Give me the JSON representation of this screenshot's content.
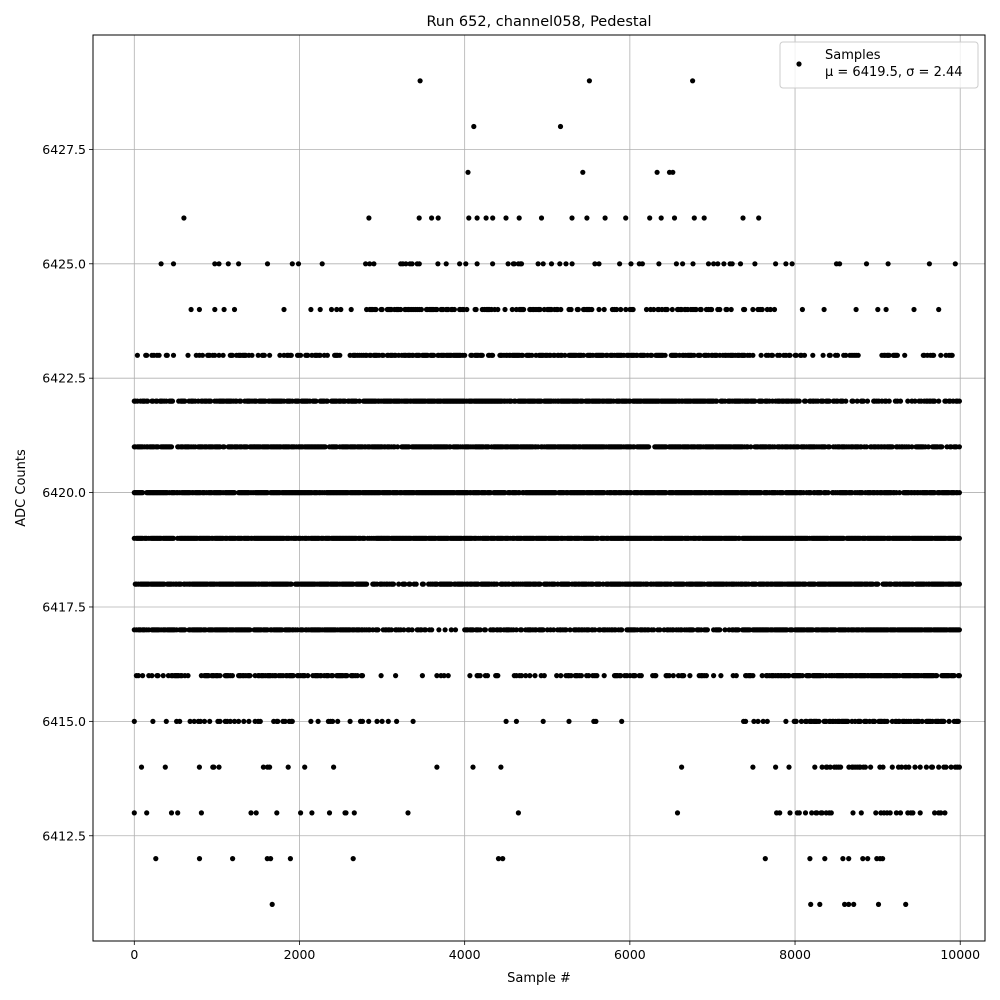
{
  "chart_data": {
    "type": "scatter",
    "title": "Run 652, channel058, Pedestal",
    "xlabel": "Sample #",
    "ylabel": "ADC Counts",
    "xlim": [
      -500,
      10300
    ],
    "ylim": [
      6410.2,
      6430.0
    ],
    "xticks": [
      0,
      2000,
      4000,
      6000,
      8000,
      10000
    ],
    "xtick_labels": [
      "0",
      "2000",
      "4000",
      "6000",
      "8000",
      "10000"
    ],
    "yticks": [
      6412.5,
      6415.0,
      6417.5,
      6420.0,
      6422.5,
      6425.0,
      6427.5
    ],
    "ytick_labels": [
      "6412.5",
      "6415.0",
      "6417.5",
      "6420.0",
      "6422.5",
      "6425.0",
      "6427.5"
    ],
    "grid": true,
    "legend_position": "top-right",
    "series": [
      {
        "name": "Samples",
        "stats_label": "μ = 6419.5, σ = 2.44",
        "color": "#000000",
        "marker": "circle",
        "sample_count": 10000,
        "mean": 6419.5,
        "sigma": 2.44,
        "x_range": [
          0,
          9990
        ],
        "band_values": [
          6411,
          6412,
          6413,
          6414,
          6415,
          6416,
          6417,
          6418,
          6419,
          6420,
          6421,
          6422,
          6423,
          6424,
          6425,
          6426,
          6427,
          6428,
          6429
        ],
        "outlier_points": [
          [
            3460,
            6429
          ],
          [
            5510,
            6429
          ],
          [
            6760,
            6429
          ],
          [
            4110,
            6428
          ],
          [
            5160,
            6428
          ],
          [
            4040,
            6427
          ],
          [
            5430,
            6427
          ],
          [
            6330,
            6427
          ],
          [
            6480,
            6427
          ],
          [
            6520,
            6427
          ],
          [
            600,
            6426
          ],
          [
            2840,
            6426
          ],
          [
            3450,
            6426
          ],
          [
            3600,
            6426
          ],
          [
            3680,
            6426
          ],
          [
            4050,
            6426
          ],
          [
            4150,
            6426
          ],
          [
            4260,
            6426
          ],
          [
            4340,
            6426
          ],
          [
            4500,
            6426
          ],
          [
            4660,
            6426
          ],
          [
            4930,
            6426
          ],
          [
            5300,
            6426
          ],
          [
            5480,
            6426
          ],
          [
            5700,
            6426
          ],
          [
            5950,
            6426
          ],
          [
            6240,
            6426
          ],
          [
            6380,
            6426
          ],
          [
            6540,
            6426
          ],
          [
            6780,
            6426
          ],
          [
            6900,
            6426
          ],
          [
            7370,
            6426
          ],
          [
            7560,
            6426
          ],
          [
            1670,
            6411
          ],
          [
            8190,
            6411
          ],
          [
            8300,
            6411
          ],
          [
            8600,
            6411
          ],
          [
            8650,
            6411
          ],
          [
            8710,
            6411
          ],
          [
            9010,
            6411
          ],
          [
            9340,
            6411
          ],
          [
            260,
            6412
          ],
          [
            790,
            6412
          ],
          [
            1190,
            6412
          ],
          [
            1610,
            6412
          ],
          [
            1650,
            6412
          ],
          [
            1890,
            6412
          ],
          [
            2650,
            6412
          ],
          [
            4410,
            6412
          ],
          [
            4460,
            6412
          ],
          [
            7640,
            6412
          ],
          [
            8180,
            6412
          ],
          [
            8360,
            6412
          ],
          [
            8580,
            6412
          ],
          [
            8650,
            6412
          ],
          [
            8820,
            6412
          ],
          [
            8880,
            6412
          ],
          [
            8990,
            6412
          ],
          [
            9030,
            6412
          ],
          [
            9060,
            6412
          ]
        ]
      }
    ]
  }
}
